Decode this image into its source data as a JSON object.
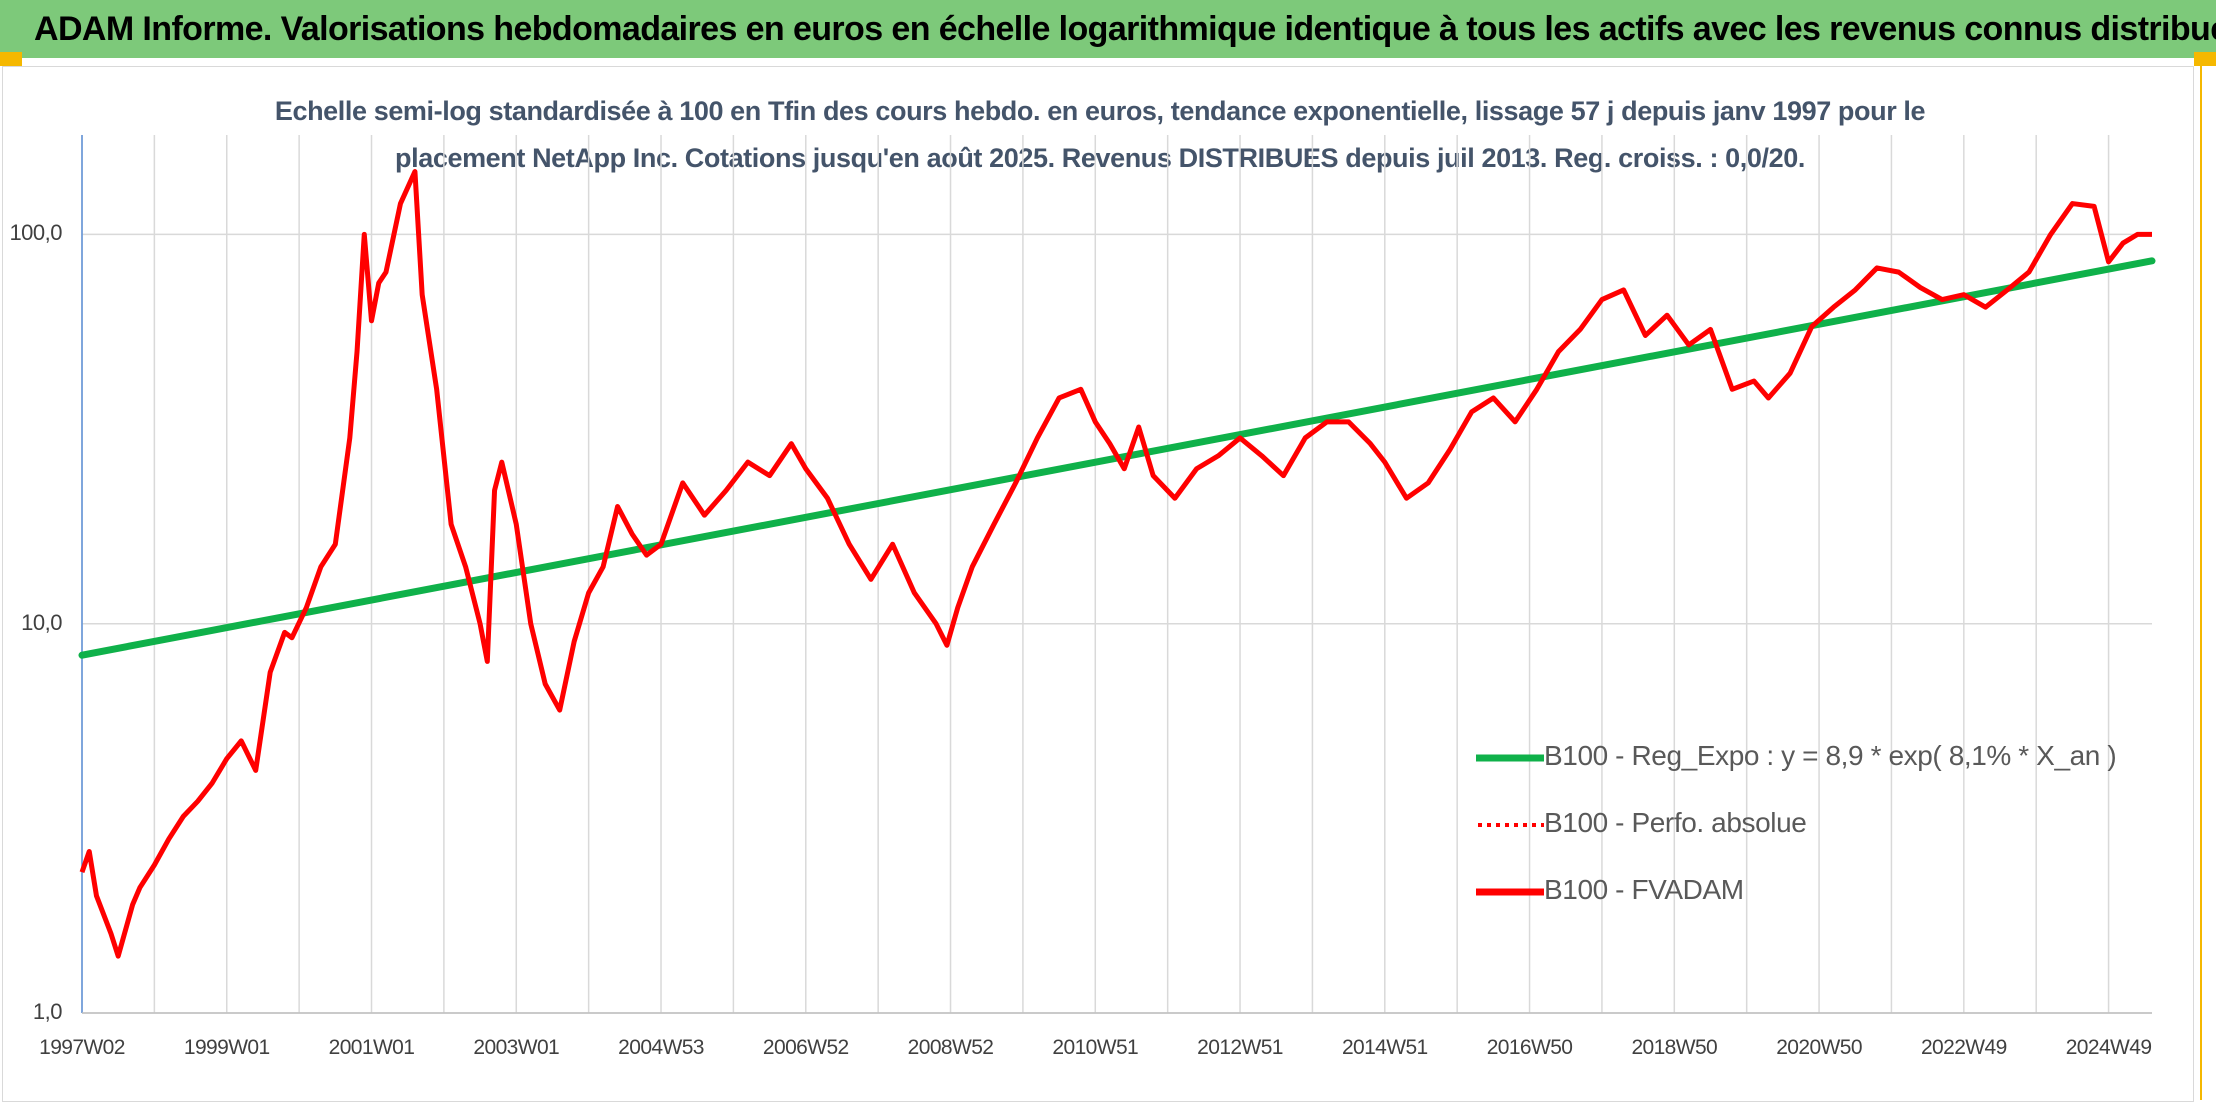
{
  "banner": {
    "title": "ADAM Informe. Valorisations hebdomadaires en euros en échelle logarithmique identique à tous les actifs avec les revenus connus distribués"
  },
  "colors": {
    "banner_bg": "#7dc97a",
    "accent_corner": "#f5b800",
    "trend_line": "#0fb14a",
    "fvadam_line": "#ff0000",
    "title_text": "#44546a",
    "grid": "#d9d9d9"
  },
  "chart_data": {
    "type": "line",
    "title_line1": "Echelle semi-log standardisée à 100 en Tfin des cours hebdo. en euros, tendance exponentielle, lissage 57 j depuis janv 1997 pour le",
    "title_line2": "placement NetApp Inc. Cotations jusqu'en août 2025. Revenus DISTRIBUES depuis juil 2013. Reg. croiss. : 0,0/20.",
    "y_scale": "log",
    "ylim": [
      1,
      180
    ],
    "y_tick_labels": [
      "100,0",
      "10,0",
      "1,0"
    ],
    "y_tick_values": [
      100,
      10,
      1
    ],
    "xlim": [
      1997.0,
      2025.6
    ],
    "x_tick_labels": [
      "1997W02",
      "1999W01",
      "2001W01",
      "2003W01",
      "2004W53",
      "2006W52",
      "2008W52",
      "2010W51",
      "2012W51",
      "2014W51",
      "2016W50",
      "2018W50",
      "2020W50",
      "2022W49",
      "2024W49"
    ],
    "x_tick_values": [
      1997.0,
      1999.0,
      2001.0,
      2003.0,
      2005.0,
      2007.0,
      2009.0,
      2011.0,
      2013.0,
      2015.0,
      2017.0,
      2019.0,
      2021.0,
      2023.0,
      2025.0
    ],
    "grid": true,
    "legend_position": "bottom-right",
    "legend": [
      {
        "label": "B100 - Reg_Expo : y = 8,9 * exp( 8,1% *  X_an )",
        "style": "solid",
        "color": "#0fb14a"
      },
      {
        "label": "B100 - Perfo. absolue",
        "style": "dotted",
        "color": "#ff0000"
      },
      {
        "label": "B100 - FVADAM",
        "style": "solid",
        "color": "#ff0000"
      }
    ],
    "series": [
      {
        "name": "B100 - Reg_Expo : y = 8,9 * exp( 8,1% *  X_an )",
        "x": [
          1997.0,
          2025.6
        ],
        "y": [
          8.3,
          85.5
        ]
      },
      {
        "name": "B100 - FVADAM",
        "x": [
          1997.0,
          1997.1,
          1997.2,
          1997.4,
          1997.5,
          1997.7,
          1997.8,
          1998.0,
          1998.2,
          1998.4,
          1998.6,
          1998.8,
          1999.0,
          1999.2,
          1999.4,
          1999.6,
          1999.8,
          1999.9,
          2000.1,
          2000.3,
          2000.5,
          2000.7,
          2000.8,
          2000.9,
          2001.0,
          2001.1,
          2001.2,
          2001.4,
          2001.6,
          2001.7,
          2001.9,
          2002.1,
          2002.3,
          2002.5,
          2002.6,
          2002.7,
          2002.8,
          2003.0,
          2003.2,
          2003.4,
          2003.6,
          2003.8,
          2004.0,
          2004.2,
          2004.4,
          2004.6,
          2004.8,
          2005.0,
          2005.3,
          2005.6,
          2005.9,
          2006.2,
          2006.5,
          2006.8,
          2007.0,
          2007.3,
          2007.6,
          2007.9,
          2008.2,
          2008.5,
          2008.8,
          2008.95,
          2009.1,
          2009.3,
          2009.6,
          2009.9,
          2010.2,
          2010.5,
          2010.8,
          2011.0,
          2011.2,
          2011.4,
          2011.6,
          2011.8,
          2012.1,
          2012.4,
          2012.7,
          2013.0,
          2013.3,
          2013.6,
          2013.9,
          2014.2,
          2014.5,
          2014.8,
          2015.0,
          2015.3,
          2015.6,
          2015.9,
          2016.2,
          2016.5,
          2016.8,
          2017.1,
          2017.4,
          2017.7,
          2018.0,
          2018.3,
          2018.6,
          2018.9,
          2019.2,
          2019.5,
          2019.8,
          2020.1,
          2020.3,
          2020.6,
          2020.9,
          2021.2,
          2021.5,
          2021.8,
          2022.1,
          2022.4,
          2022.7,
          2023.0,
          2023.3,
          2023.6,
          2023.9,
          2024.2,
          2024.5,
          2024.8,
          2025.0,
          2025.2,
          2025.4,
          2025.6
        ],
        "y": [
          2.3,
          2.6,
          2.0,
          1.6,
          1.4,
          1.9,
          2.1,
          2.4,
          2.8,
          3.2,
          3.5,
          3.9,
          4.5,
          5.0,
          4.2,
          7.5,
          9.5,
          9.2,
          11.0,
          14.0,
          16.0,
          30.0,
          50.0,
          100.0,
          60.0,
          75.0,
          80.0,
          120.0,
          145.0,
          70.0,
          40.0,
          18.0,
          14.0,
          10.0,
          8.0,
          22.0,
          26.0,
          18.0,
          10.0,
          7.0,
          6.0,
          9.0,
          12.0,
          14.0,
          20.0,
          17.0,
          15.0,
          16.0,
          23.0,
          19.0,
          22.0,
          26.0,
          24.0,
          29.0,
          25.0,
          21.0,
          16.0,
          13.0,
          16.0,
          12.0,
          10.0,
          8.8,
          11.0,
          14.0,
          18.0,
          23.0,
          30.0,
          38.0,
          40.0,
          33.0,
          29.0,
          25.0,
          32.0,
          24.0,
          21.0,
          25.0,
          27.0,
          30.0,
          27.0,
          24.0,
          30.0,
          33.0,
          33.0,
          29.0,
          26.0,
          21.0,
          23.0,
          28.0,
          35.0,
          38.0,
          33.0,
          40.0,
          50.0,
          57.0,
          68.0,
          72.0,
          55.0,
          62.0,
          52.0,
          57.0,
          40.0,
          42.0,
          38.0,
          44.0,
          58.0,
          65.0,
          72.0,
          82.0,
          80.0,
          73.0,
          68.0,
          70.0,
          65.0,
          72.0,
          80.0,
          100.0,
          120.0,
          118.0,
          85.0,
          95.0,
          100.0,
          100.0
        ]
      }
    ]
  }
}
